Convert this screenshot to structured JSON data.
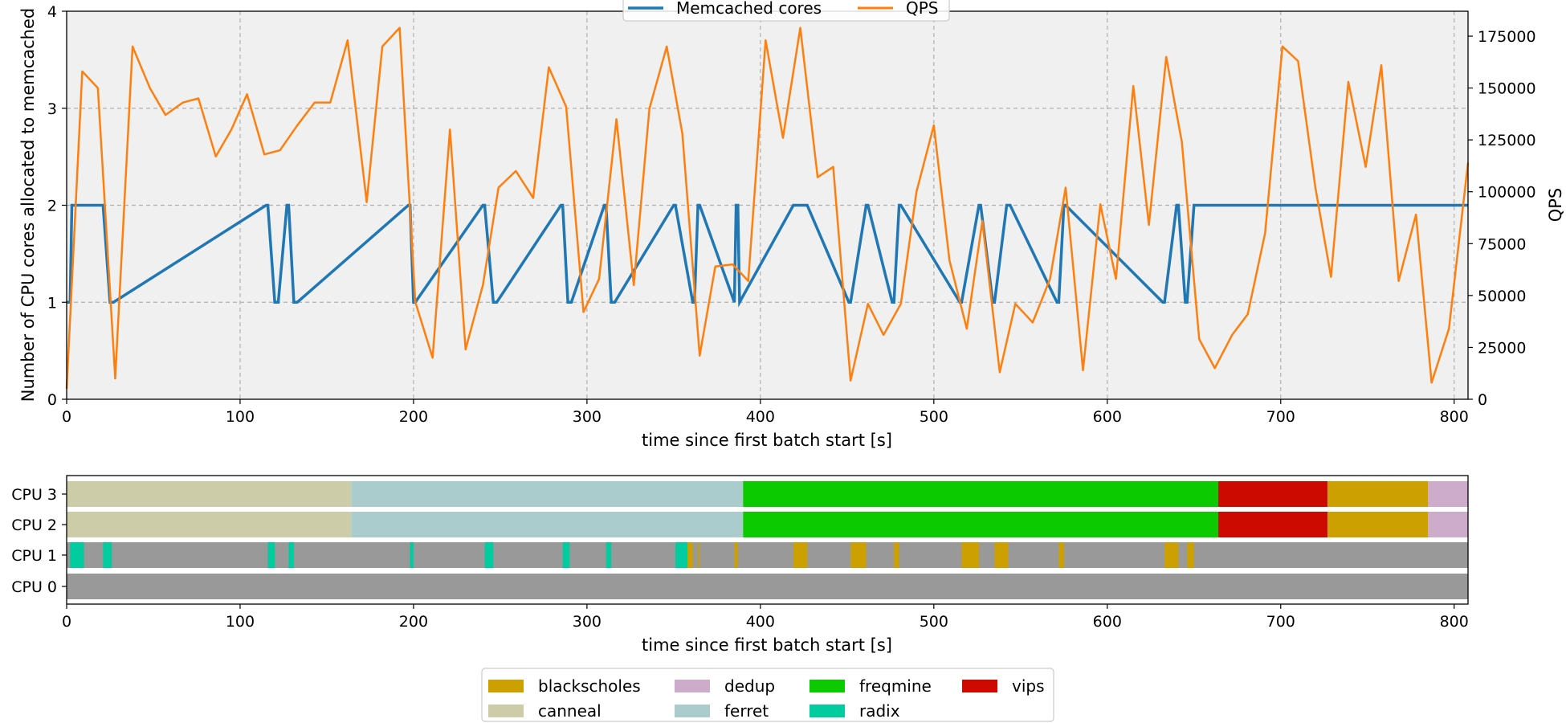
{
  "chart_data": [
    {
      "type": "line",
      "xlabel": "time since first batch start [s]",
      "ylabel": "Number of CPU cores allocated to memcached",
      "y2label": "QPS",
      "xlim": [
        0,
        808
      ],
      "ylim": [
        0,
        4
      ],
      "y2lim": [
        0,
        187000
      ],
      "xticks": [
        0,
        100,
        200,
        300,
        400,
        500,
        600,
        700,
        800
      ],
      "yticks": [
        0,
        1,
        2,
        3,
        4
      ],
      "y2ticks": [
        0,
        25000,
        50000,
        75000,
        100000,
        125000,
        150000,
        175000
      ],
      "y2tick_labels": [
        "0",
        "25000",
        "50000",
        "75000",
        "100000",
        "125000",
        "150000",
        "175000"
      ],
      "grid": true,
      "background": "#f0f0f0",
      "legend": {
        "placement": "top-center",
        "entries": [
          "Memcached cores",
          "QPS"
        ]
      },
      "colors": {
        "cores": "#1f77b4",
        "qps": "#ff7f0e"
      },
      "series": [
        {
          "name": "Memcached cores",
          "axis": "left",
          "drawstyle": "steps",
          "x": [
            0,
            2,
            3,
            10,
            11,
            21,
            25,
            27,
            115,
            116,
            120,
            122,
            127,
            128,
            131,
            133,
            197,
            198,
            200,
            201,
            240,
            241,
            246,
            248,
            285,
            286,
            289,
            291,
            310,
            311,
            314,
            316,
            350,
            351,
            361,
            362,
            364,
            365,
            385,
            386,
            387,
            388,
            419,
            420,
            426,
            427,
            451,
            452,
            461,
            462,
            476,
            477,
            480,
            481,
            515,
            516,
            526,
            527,
            534,
            535,
            542,
            544,
            571,
            572,
            575,
            576,
            632,
            633,
            640,
            641,
            645,
            646,
            650,
            652,
            808
          ],
          "y": [
            1,
            1,
            2,
            2,
            2,
            2,
            1,
            1,
            2,
            2,
            1,
            1,
            2,
            2,
            1,
            1,
            2,
            2,
            1,
            1,
            2,
            2,
            1,
            1,
            2,
            2,
            1,
            1,
            2,
            2,
            1,
            1,
            2,
            2,
            1,
            1,
            2,
            2,
            1,
            2,
            2,
            1,
            2,
            2,
            2,
            2,
            1,
            1,
            2,
            2,
            1,
            1,
            2,
            2,
            1,
            1,
            2,
            2,
            1,
            1,
            2,
            2,
            1,
            1,
            2,
            2,
            1,
            1,
            2,
            2,
            1,
            1,
            2,
            2,
            2
          ]
        },
        {
          "name": "QPS",
          "axis": "right",
          "x": [
            0,
            9,
            18,
            28,
            38,
            48,
            57,
            67,
            76,
            86,
            95,
            104,
            114,
            123,
            133,
            143,
            152,
            162,
            173,
            182,
            192,
            201,
            211,
            221,
            230,
            240,
            249,
            259,
            269,
            278,
            288,
            298,
            307,
            317,
            327,
            336,
            346,
            355,
            365,
            374,
            384,
            393,
            403,
            413,
            423,
            433,
            442,
            452,
            462,
            471,
            481,
            490,
            500,
            509,
            519,
            528,
            538,
            547,
            557,
            567,
            576,
            586,
            596,
            605,
            615,
            624,
            634,
            643,
            653,
            662,
            672,
            681,
            691,
            701,
            710,
            720,
            729,
            739,
            749,
            758,
            768,
            778,
            787,
            797,
            808
          ],
          "y": [
            5000,
            158000,
            150000,
            10000,
            170000,
            150000,
            137000,
            143000,
            145000,
            117000,
            130000,
            147000,
            118000,
            120000,
            132000,
            143000,
            143000,
            173000,
            95000,
            170000,
            179000,
            47000,
            20000,
            130000,
            24000,
            55000,
            102000,
            110000,
            97000,
            160000,
            141000,
            42000,
            58000,
            135000,
            55000,
            140000,
            170000,
            128000,
            21000,
            64000,
            65000,
            57000,
            173000,
            126000,
            179000,
            107000,
            112000,
            9000,
            46000,
            31000,
            46000,
            100000,
            132000,
            67000,
            34000,
            86000,
            13000,
            46000,
            37000,
            58000,
            102000,
            14000,
            94000,
            58000,
            151000,
            84000,
            165000,
            124000,
            29000,
            15000,
            31000,
            41000,
            80000,
            170000,
            163000,
            102000,
            59000,
            153000,
            112000,
            161000,
            57000,
            89000,
            8000,
            34000,
            114000
          ]
        }
      ]
    },
    {
      "type": "bar",
      "subtype": "timeline",
      "xlabel": "time since first batch start [s]",
      "xlim": [
        0,
        808
      ],
      "xticks": [
        0,
        100,
        200,
        300,
        400,
        500,
        600,
        700,
        800
      ],
      "categories": [
        "CPU 3",
        "CPU 2",
        "CPU 1",
        "CPU 0"
      ],
      "job_colors": {
        "blackscholes": "#cca000",
        "canneal": "#cccca8",
        "dedup": "#ccacca",
        "ferret": "#aacccc",
        "freqmine": "#0cca00",
        "radix": "#00cca0",
        "vips": "#cc0a00",
        "memcached": "#999999"
      },
      "legend": {
        "placement": "bottom-center",
        "entries": [
          "blackscholes",
          "canneal",
          "dedup",
          "ferret",
          "freqmine",
          "radix",
          "vips"
        ]
      },
      "segments": {
        "CPU 3": [
          {
            "job": "canneal",
            "start": 0,
            "end": 164
          },
          {
            "job": "ferret",
            "start": 164,
            "end": 390
          },
          {
            "job": "freqmine",
            "start": 390,
            "end": 664
          },
          {
            "job": "vips",
            "start": 664,
            "end": 727
          },
          {
            "job": "blackscholes",
            "start": 727,
            "end": 785
          },
          {
            "job": "dedup",
            "start": 785,
            "end": 808
          }
        ],
        "CPU 2": [
          {
            "job": "canneal",
            "start": 0,
            "end": 164
          },
          {
            "job": "ferret",
            "start": 164,
            "end": 390
          },
          {
            "job": "freqmine",
            "start": 390,
            "end": 664
          },
          {
            "job": "vips",
            "start": 664,
            "end": 727
          },
          {
            "job": "blackscholes",
            "start": 727,
            "end": 785
          },
          {
            "job": "dedup",
            "start": 785,
            "end": 808
          }
        ],
        "CPU 1": [
          {
            "job": "memcached",
            "start": 0,
            "end": 808
          },
          {
            "job": "radix",
            "start": 2,
            "end": 10
          },
          {
            "job": "radix",
            "start": 21,
            "end": 26
          },
          {
            "job": "radix",
            "start": 116,
            "end": 120
          },
          {
            "job": "radix",
            "start": 128,
            "end": 131
          },
          {
            "job": "radix",
            "start": 198,
            "end": 200
          },
          {
            "job": "radix",
            "start": 241,
            "end": 246
          },
          {
            "job": "radix",
            "start": 286,
            "end": 290
          },
          {
            "job": "radix",
            "start": 311,
            "end": 314
          },
          {
            "job": "radix",
            "start": 351,
            "end": 358
          },
          {
            "job": "blackscholes",
            "start": 358,
            "end": 361
          },
          {
            "job": "blackscholes",
            "start": 364,
            "end": 365
          },
          {
            "job": "blackscholes",
            "start": 385,
            "end": 387
          },
          {
            "job": "blackscholes",
            "start": 419,
            "end": 427
          },
          {
            "job": "blackscholes",
            "start": 452,
            "end": 461
          },
          {
            "job": "blackscholes",
            "start": 477,
            "end": 480
          },
          {
            "job": "blackscholes",
            "start": 516,
            "end": 526
          },
          {
            "job": "blackscholes",
            "start": 535,
            "end": 543
          },
          {
            "job": "blackscholes",
            "start": 572,
            "end": 575
          },
          {
            "job": "blackscholes",
            "start": 633,
            "end": 641
          },
          {
            "job": "blackscholes",
            "start": 646,
            "end": 650
          }
        ],
        "CPU 0": [
          {
            "job": "memcached",
            "start": 0,
            "end": 808
          }
        ]
      }
    }
  ]
}
